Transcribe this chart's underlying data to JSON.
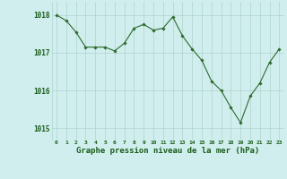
{
  "x": [
    0,
    1,
    2,
    3,
    4,
    5,
    6,
    7,
    8,
    9,
    10,
    11,
    12,
    13,
    14,
    15,
    16,
    17,
    18,
    19,
    20,
    21,
    22,
    23
  ],
  "y": [
    1018.0,
    1017.85,
    1017.55,
    1017.15,
    1017.15,
    1017.15,
    1017.05,
    1017.25,
    1017.65,
    1017.75,
    1017.6,
    1017.65,
    1017.95,
    1017.45,
    1017.1,
    1016.8,
    1016.25,
    1016.0,
    1015.55,
    1015.15,
    1015.85,
    1016.2,
    1016.75,
    1017.1
  ],
  "line_color": "#2d6a2d",
  "marker": "D",
  "marker_size": 1.8,
  "bg_color": "#d0eeed",
  "grid_color": "#aed4d0",
  "xlabel": "Graphe pression niveau de la mer (hPa)",
  "xlabel_color": "#1a5c1a",
  "tick_label_color": "#1a5c1a",
  "ylim": [
    1014.7,
    1018.35
  ],
  "yticks": [
    1015,
    1016,
    1017,
    1018
  ],
  "xticks": [
    0,
    1,
    2,
    3,
    4,
    5,
    6,
    7,
    8,
    9,
    10,
    11,
    12,
    13,
    14,
    15,
    16,
    17,
    18,
    19,
    20,
    21,
    22,
    23
  ],
  "figsize": [
    3.2,
    2.0
  ],
  "dpi": 100
}
